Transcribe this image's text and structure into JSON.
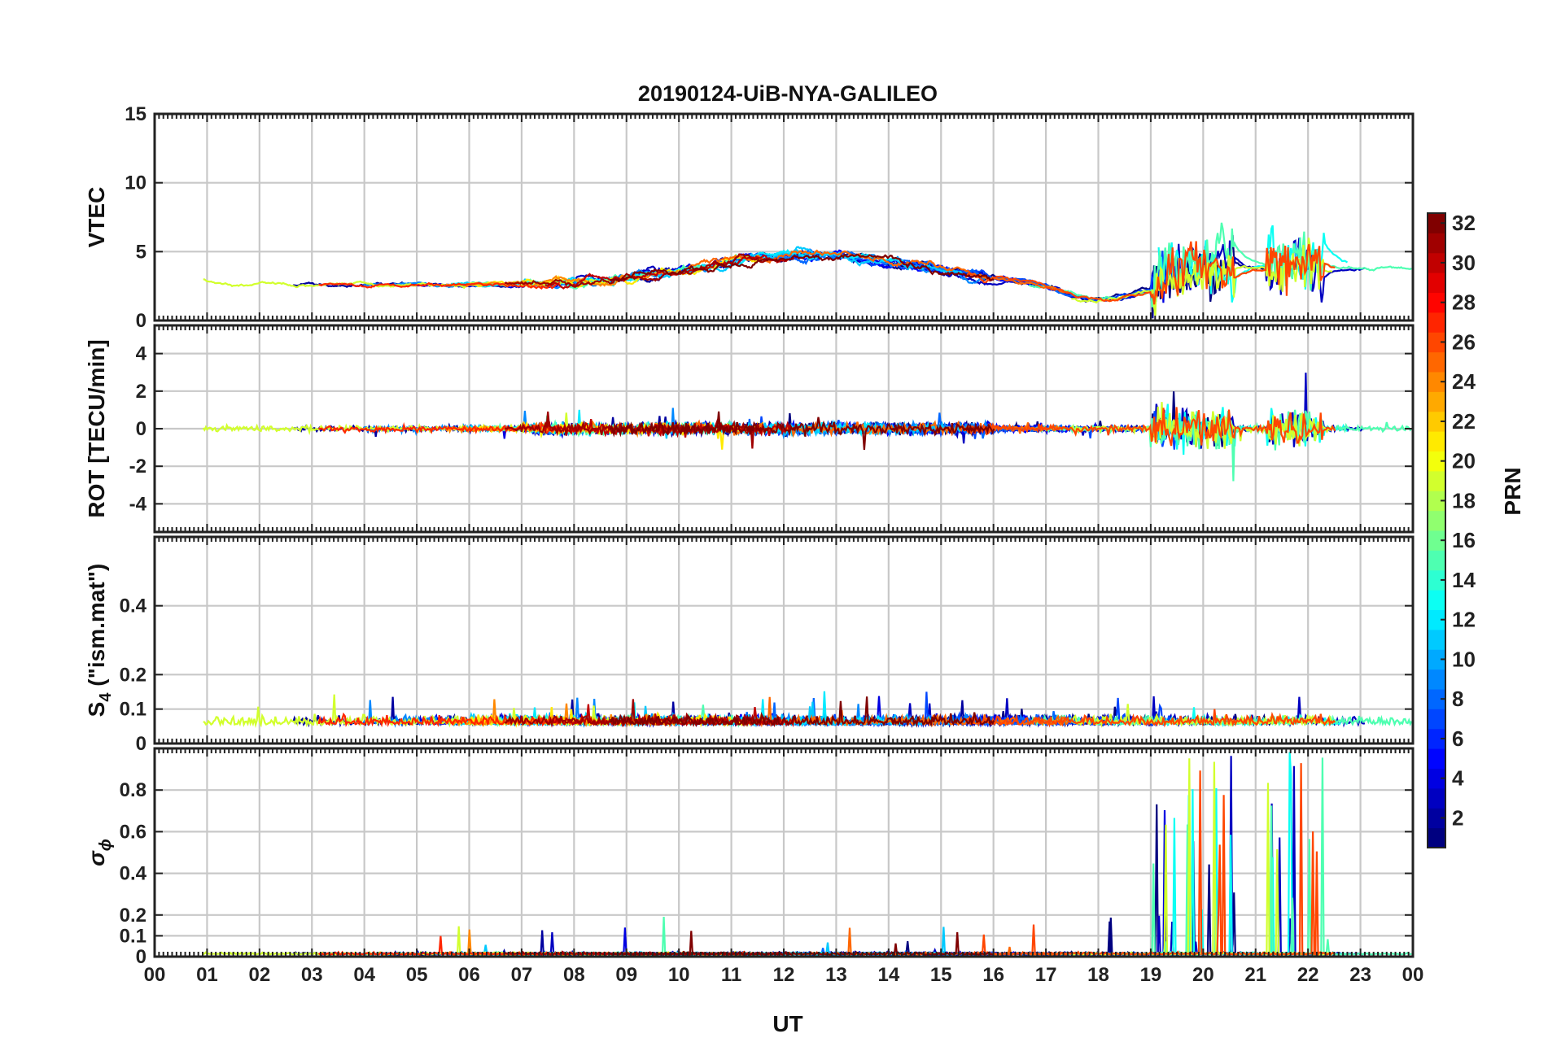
{
  "chart_data": {
    "type": "line",
    "title": "20190124-UiB-NYA-GALILEO",
    "xlabel": "UT",
    "x_ticks": [
      "00",
      "01",
      "02",
      "03",
      "04",
      "05",
      "06",
      "07",
      "08",
      "09",
      "10",
      "11",
      "12",
      "13",
      "14",
      "15",
      "16",
      "17",
      "18",
      "19",
      "20",
      "21",
      "22",
      "23",
      "00"
    ],
    "xlim": [
      0,
      24
    ],
    "grid": true,
    "panels": [
      {
        "id": "vtec",
        "ylabel": "VTEC",
        "ylim": [
          0,
          15
        ],
        "y_ticks": [
          0,
          5,
          10,
          15
        ],
        "y_tick_labels": [
          "0",
          "5",
          "10",
          "15"
        ]
      },
      {
        "id": "rot",
        "ylabel": "ROT [TECU/min]",
        "ylim": [
          -5.5,
          5.5
        ],
        "y_ticks": [
          -4,
          -2,
          0,
          2,
          4
        ],
        "y_tick_labels": [
          "-4",
          "-2",
          "0",
          "2",
          "4"
        ]
      },
      {
        "id": "s4",
        "ylabel_main": "S",
        "ylabel_sub": "4",
        "ylabel_rest": " (\"ism.mat\")",
        "ylim": [
          0,
          0.6
        ],
        "y_ticks": [
          0,
          0.1,
          0.2,
          0.4
        ],
        "y_tick_labels": [
          "0",
          "0.1",
          "0.2",
          "0.4"
        ]
      },
      {
        "id": "sigphi",
        "ylabel_main": "σ",
        "ylabel_sub": "ϕ",
        "ylim": [
          0,
          1
        ],
        "y_ticks": [
          0,
          0.1,
          0.2,
          0.4,
          0.6,
          0.8
        ],
        "y_tick_labels": [
          "0",
          "0.1",
          "0.2",
          "0.4",
          "0.6",
          "0.8"
        ]
      }
    ],
    "colorbar": {
      "label": "PRN",
      "range": [
        1,
        32
      ],
      "ticks": [
        2,
        4,
        6,
        8,
        10,
        12,
        14,
        16,
        18,
        20,
        22,
        24,
        26,
        28,
        30,
        32
      ],
      "colormap": "jet"
    },
    "series_prns": [
      1,
      2,
      3,
      4,
      5,
      7,
      8,
      9,
      11,
      12,
      13,
      15,
      19,
      21,
      24,
      25,
      26,
      27,
      30,
      31,
      32
    ]
  }
}
